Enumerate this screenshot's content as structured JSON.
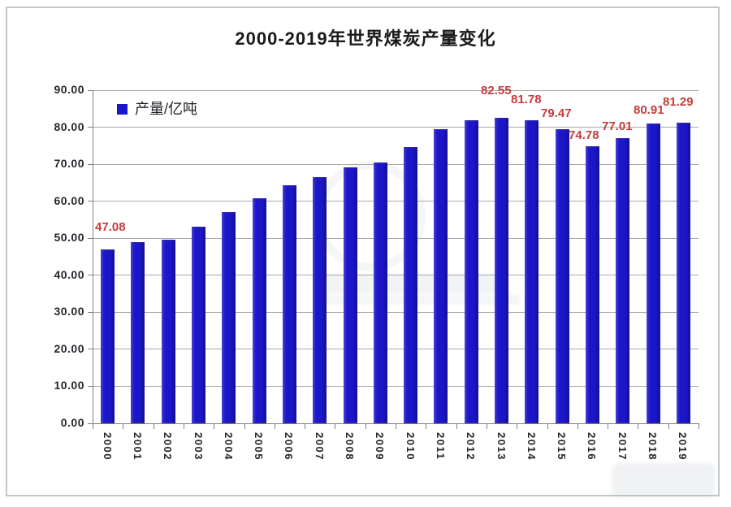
{
  "frame": {
    "bg": "#ffffff",
    "border_color": "#c3c7cb"
  },
  "chart_data": {
    "type": "bar",
    "title": "2000-2019年世界煤炭产量变化",
    "legend": [
      {
        "label": "产量/亿吨",
        "color": "#1c16c9"
      }
    ],
    "legend_position": "top-left",
    "categories": [
      "2000",
      "2001",
      "2002",
      "2003",
      "2004",
      "2005",
      "2006",
      "2007",
      "2008",
      "2009",
      "2010",
      "2011",
      "2012",
      "2013",
      "2014",
      "2015",
      "2016",
      "2017",
      "2018",
      "2019"
    ],
    "series": [
      {
        "name": "产量/亿吨",
        "values": [
          47.08,
          48.9,
          49.6,
          53.1,
          57.1,
          60.8,
          64.3,
          66.6,
          69.1,
          70.5,
          74.7,
          79.4,
          81.8,
          82.55,
          81.78,
          79.47,
          74.78,
          77.01,
          80.91,
          81.29
        ]
      }
    ],
    "data_labels": {
      "2000": "47.08",
      "2013": "82.55",
      "2014": "81.78",
      "2015": "79.47",
      "2016": "74.78",
      "2017": "77.01",
      "2018": "80.91",
      "2019": "81.29"
    },
    "y_ticks": [
      "0.00",
      "10.00",
      "20.00",
      "30.00",
      "40.00",
      "50.00",
      "60.00",
      "70.00",
      "80.00",
      "90.00"
    ],
    "ylim": [
      0,
      90
    ],
    "grid": true,
    "xlabel": "",
    "ylabel": "",
    "colors": {
      "bar": "#1c16c9",
      "label": "#c43c3c",
      "grid": "#a8a8a8",
      "axis": "#7f7f7f",
      "text": "#26262e",
      "title": "#1a1a1a"
    }
  }
}
